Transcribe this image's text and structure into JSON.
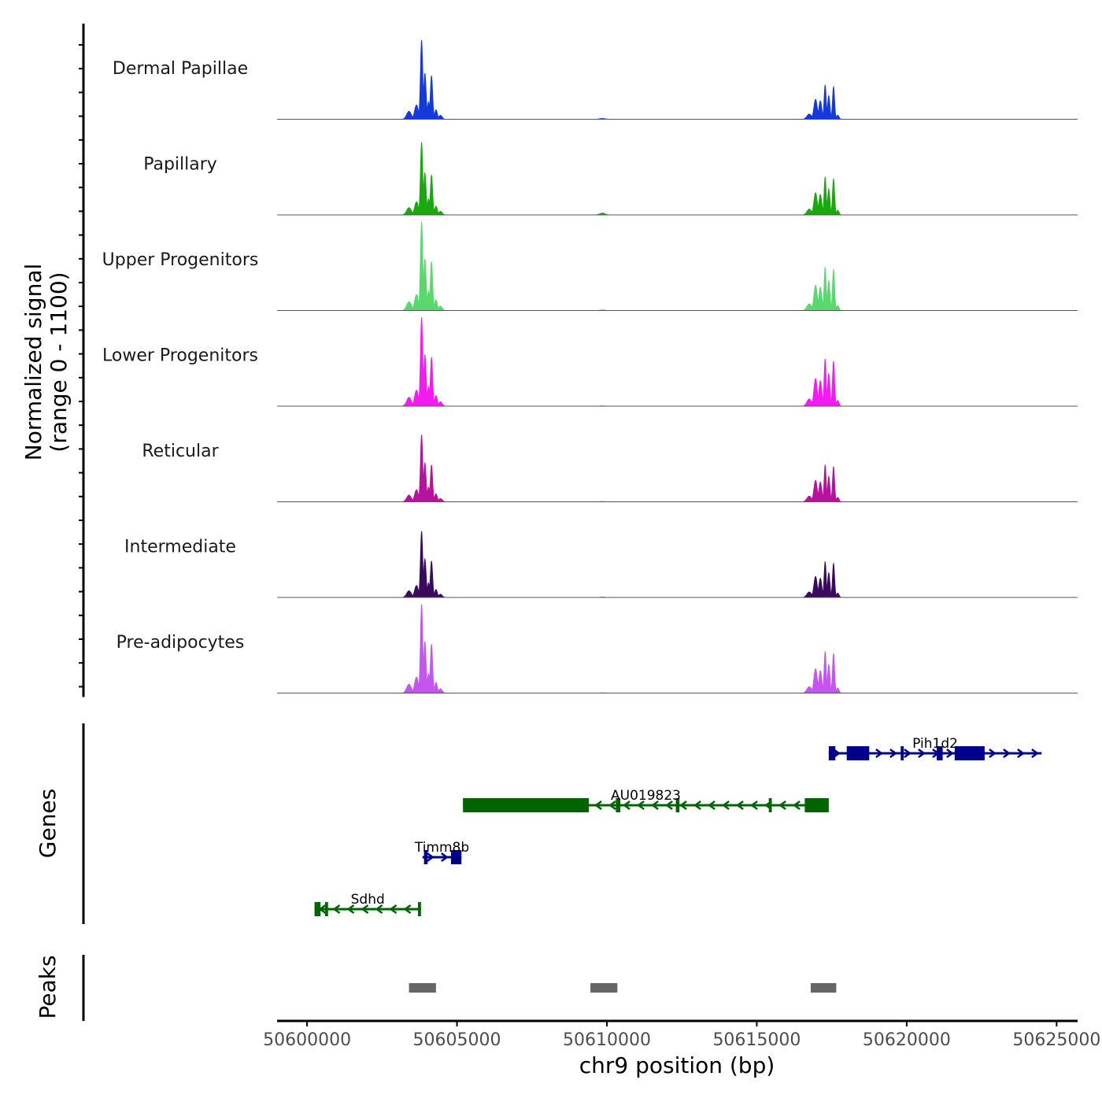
{
  "chart_data": {
    "type": "area",
    "title": "",
    "ylabel_line1": "Normalized signal",
    "ylabel_line2": "(range 0 - 1100)",
    "xlabel": "chr9 position (bp)",
    "ylim": [
      0,
      1100
    ],
    "xlim": [
      50599000,
      50625700
    ],
    "x_ticks": [
      50600000,
      50605000,
      50610000,
      50615000,
      50620000,
      50625000
    ],
    "x_tick_labels": [
      "50600000",
      "50605000",
      "50610000",
      "50615000",
      "50620000",
      "50625000"
    ],
    "peak_profile": [
      {
        "x": 50603400,
        "w": 110,
        "h": 0.1
      },
      {
        "x": 50603650,
        "w": 90,
        "h": 0.18
      },
      {
        "x": 50603820,
        "w": 55,
        "h": 1.0
      },
      {
        "x": 50603930,
        "w": 60,
        "h": 0.58
      },
      {
        "x": 50604050,
        "w": 50,
        "h": 0.22
      },
      {
        "x": 50604150,
        "w": 55,
        "h": 0.55
      },
      {
        "x": 50604300,
        "w": 65,
        "h": 0.12
      },
      {
        "x": 50604450,
        "w": 80,
        "h": 0.05
      },
      {
        "x": 50616750,
        "w": 110,
        "h": 0.1
      },
      {
        "x": 50616960,
        "w": 80,
        "h": 0.38
      },
      {
        "x": 50617120,
        "w": 70,
        "h": 0.35
      },
      {
        "x": 50617280,
        "w": 50,
        "h": 0.65
      },
      {
        "x": 50617400,
        "w": 55,
        "h": 0.45
      },
      {
        "x": 50617560,
        "w": 50,
        "h": 0.62
      },
      {
        "x": 50617700,
        "w": 60,
        "h": 0.08
      },
      {
        "x": 50609850,
        "w": 130,
        "h": 0.05
      }
    ],
    "series": [
      {
        "name": "Dermal Papillae",
        "color": "#1639d9",
        "peak1_max": 980,
        "peak2_max": 650,
        "minor_peak": 25
      },
      {
        "name": "Papillary",
        "color": "#1aa80f",
        "peak1_max": 900,
        "peak2_max": 720,
        "minor_peak": 55
      },
      {
        "name": "Upper Progenitors",
        "color": "#5ad86e",
        "peak1_max": 1100,
        "peak2_max": 820,
        "minor_peak": 20
      },
      {
        "name": "Lower Progenitors",
        "color": "#f21cf0",
        "peak1_max": 1100,
        "peak2_max": 900,
        "minor_peak": 8
      },
      {
        "name": "Reticular",
        "color": "#b5129e",
        "peak1_max": 830,
        "peak2_max": 700,
        "minor_peak": 8
      },
      {
        "name": "Intermediate",
        "color": "#3a0a5c",
        "peak1_max": 820,
        "peak2_max": 680,
        "minor_peak": 8
      },
      {
        "name": "Pre-adipocytes",
        "color": "#c455ee",
        "peak1_max": 1100,
        "peak2_max": 790,
        "minor_peak": 8
      }
    ],
    "genes_title": "Genes",
    "genes": [
      {
        "name": "Pih1d2",
        "start": 50617400,
        "end": 50624500,
        "strand": "+",
        "color": "#00008b",
        "exons": [
          [
            50617400,
            50617620
          ],
          [
            50618000,
            50618600
          ],
          [
            50618600,
            50618750
          ],
          [
            50619800,
            50619900
          ],
          [
            50621000,
            50621200
          ],
          [
            50621600,
            50622600
          ]
        ]
      },
      {
        "name": "AU019823",
        "start": 50605200,
        "end": 50617400,
        "strand": "-",
        "color": "#006400",
        "exons": [
          [
            50605200,
            50609400
          ],
          [
            50610300,
            50610450
          ],
          [
            50612300,
            50612420
          ],
          [
            50615400,
            50615500
          ],
          [
            50616600,
            50617400
          ]
        ]
      },
      {
        "name": "Timm8b",
        "start": 50603850,
        "end": 50605150,
        "strand": "+",
        "color": "#00008b",
        "exons": [
          [
            50603900,
            50604020
          ],
          [
            50604800,
            50605150
          ]
        ]
      },
      {
        "name": "Sdhd",
        "start": 50600250,
        "end": 50603800,
        "strand": "-",
        "color": "#006400",
        "exons": [
          [
            50600250,
            50600450
          ],
          [
            50600600,
            50600700
          ],
          [
            50603700,
            50603800
          ]
        ]
      }
    ],
    "peaks_title": "Peaks",
    "peaks_color": "#666666",
    "peaks": [
      [
        50603400,
        50604300
      ],
      [
        50609450,
        50610350
      ],
      [
        50616800,
        50617650
      ]
    ]
  }
}
